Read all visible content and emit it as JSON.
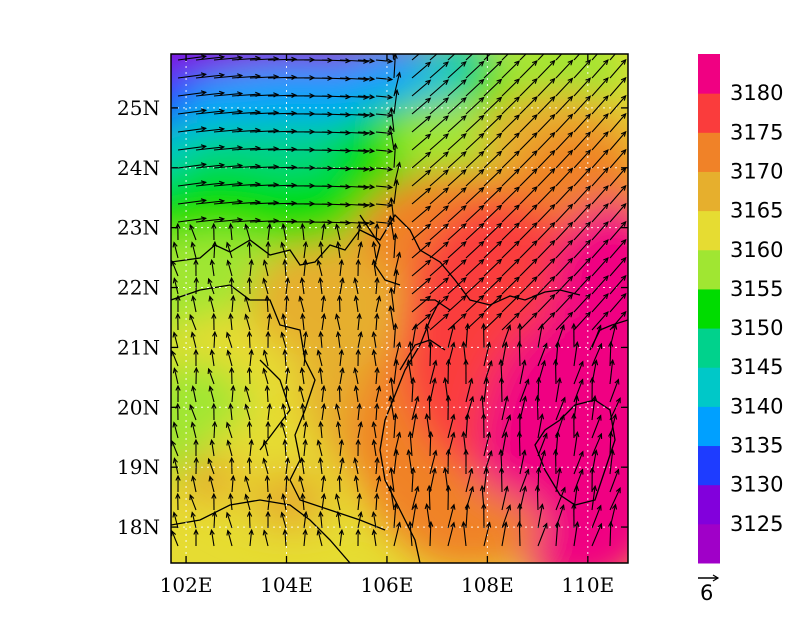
{
  "chart_data": {
    "type": "heatmap",
    "x_ticks": [
      "102E",
      "104E",
      "106E",
      "108E",
      "110E"
    ],
    "y_ticks": [
      "18N",
      "19N",
      "20N",
      "21N",
      "22N",
      "23N",
      "24N",
      "25N"
    ],
    "x_values": [
      102,
      104,
      106,
      108,
      110
    ],
    "y_values": [
      18,
      19,
      20,
      21,
      22,
      23,
      24,
      25
    ],
    "xlim": [
      101.7,
      110.8
    ],
    "ylim": [
      17.4,
      25.9
    ],
    "grid": true,
    "grid_style": "dotted",
    "colorbar": {
      "levels": [
        3125,
        3130,
        3135,
        3140,
        3145,
        3150,
        3155,
        3160,
        3165,
        3170,
        3175,
        3180
      ],
      "labels": [
        "3125",
        "3130",
        "3135",
        "3140",
        "3145",
        "3150",
        "3155",
        "3160",
        "3165",
        "3170",
        "3175",
        "3180"
      ],
      "colors": [
        "#a000c8",
        "#8200dc",
        "#1e3cff",
        "#00a0ff",
        "#00c8c8",
        "#00d28c",
        "#00dc00",
        "#a0e632",
        "#e6dc32",
        "#e6af2d",
        "#f08228",
        "#fa3c3c",
        "#f00082"
      ]
    },
    "vector_reference": {
      "label": "6",
      "magnitude": 6
    },
    "field_description": "contoured scalar field with wind vectors; low values (3125-3140) in the north-west, rising to 3180+ in the south-east"
  }
}
